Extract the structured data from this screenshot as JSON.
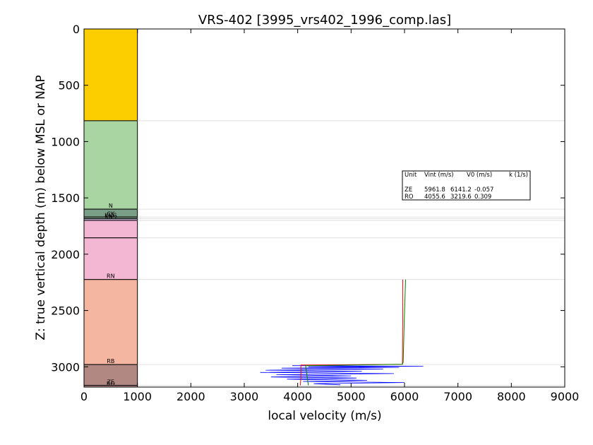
{
  "chart_data": {
    "type": "line",
    "title": "VRS-402 [3995_vrs402_1996_comp.las]",
    "xlabel": "local velocity (m/s)",
    "ylabel": "Z: true vertical depth (m) below MSL or NAP",
    "xlim": [
      0,
      9000
    ],
    "ylim": [
      3180,
      0
    ],
    "xticks": [
      "0",
      "1000",
      "2000",
      "3000",
      "4000",
      "5000",
      "6000",
      "7000",
      "8000",
      "9000"
    ],
    "yticks": [
      "0",
      "500",
      "1000",
      "1500",
      "2000",
      "2500",
      "3000"
    ],
    "grid": false,
    "units": [
      {
        "name": "",
        "top": 0,
        "bottom": 815,
        "color": "#fcce00"
      },
      {
        "name": "N",
        "top": 815,
        "bottom": 1600,
        "color": "#a8d5a2"
      },
      {
        "name": "CK",
        "top": 1600,
        "bottom": 1670,
        "color": "#7a9e86"
      },
      {
        "name": "KNG",
        "top": 1670,
        "bottom": 1685,
        "color": "#7a9e86"
      },
      {
        "name": "KNS",
        "top": 1685,
        "bottom": 1700,
        "color": "#c7b7d6"
      },
      {
        "name": "",
        "top": 1700,
        "bottom": 1855,
        "color": "#f4b7d3"
      },
      {
        "name": "RN",
        "top": 1855,
        "bottom": 2225,
        "color": "#f4b7d3"
      },
      {
        "name": "RB",
        "top": 2225,
        "bottom": 2980,
        "color": "#f4b6a0"
      },
      {
        "name": "ZE",
        "top": 2980,
        "bottom": 3165,
        "color": "#b28883"
      },
      {
        "name": "RO",
        "top": 3165,
        "bottom": 3180,
        "color": "#b28883"
      }
    ],
    "boundary_depths": [
      815,
      1600,
      1670,
      1685,
      1700,
      1855,
      2225,
      2980,
      3165
    ],
    "series": [
      {
        "color": "#0000ff",
        "x": [
          3900,
          6350,
          4200,
          5900,
          3700,
          5600,
          3400,
          5200,
          3300,
          5800,
          3600,
          5000,
          3500,
          5100,
          3800,
          5300,
          4100,
          6000,
          4300,
          4800
        ],
        "y": [
          2990,
          2995,
          3000,
          3005,
          3012,
          3020,
          3030,
          3040,
          3050,
          3060,
          3070,
          3080,
          3090,
          3100,
          3110,
          3120,
          3130,
          3140,
          3150,
          3160
        ]
      },
      {
        "color": "#ff0000",
        "x": [
          5965,
          5965,
          5962,
          5960,
          4060,
          4060,
          4050
        ],
        "y": [
          2225,
          2600,
          2960,
          2978,
          2985,
          3100,
          3165
        ]
      },
      {
        "color": "#008000",
        "x": [
          6020,
          5995,
          5975,
          5960,
          4150,
          4180,
          4200
        ],
        "y": [
          2225,
          2600,
          2960,
          2978,
          2990,
          3100,
          3165
        ]
      }
    ],
    "legend": {
      "placement": "center-right",
      "header": [
        "Unit",
        "Vint (m/s)",
        "V0 (m/s)",
        "k (1/s)"
      ],
      "rows": [
        [
          "ZE",
          "5961.8",
          "6141.2",
          "-0.057"
        ],
        [
          "RO",
          "4055.6",
          "3219.6",
          "0.309"
        ]
      ]
    }
  }
}
